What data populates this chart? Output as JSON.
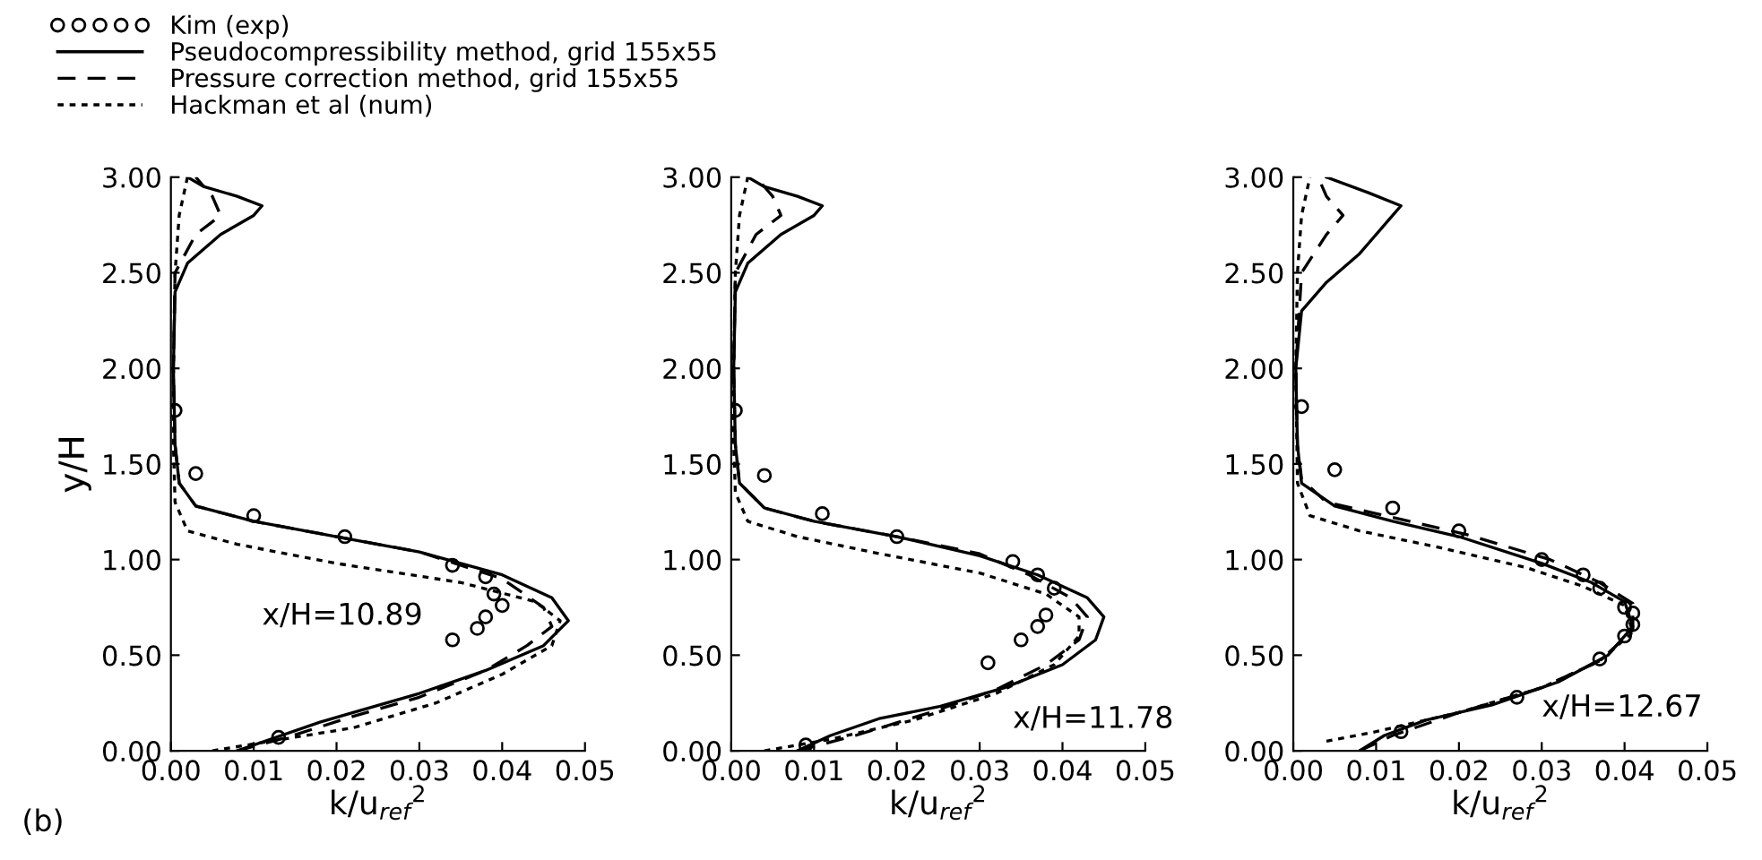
{
  "chart_data": [
    {
      "type": "line",
      "xlabel": "k/u$_{ref}$$^{2}$",
      "ylabel": "y/H",
      "xlim": [
        0,
        0.05
      ],
      "ylim": [
        0,
        3
      ],
      "legend": "top left",
      "grid": false,
      "xticks": [
        {
          "value": 0,
          "label": "0.00"
        },
        {
          "value": 0.01,
          "label": "0.01"
        },
        {
          "value": 0.02,
          "label": "0.02"
        },
        {
          "value": 0.03,
          "label": "0.03"
        },
        {
          "value": 0.04,
          "label": "0.04"
        },
        {
          "value": 0.05,
          "label": "0.05"
        }
      ],
      "yticks": [
        {
          "value": 0,
          "label": "0.00"
        },
        {
          "value": 0.5,
          "label": "0.50"
        },
        {
          "value": 1,
          "label": "1.00"
        },
        {
          "value": 1.5,
          "label": "1.50"
        },
        {
          "value": 2,
          "label": "2.00"
        },
        {
          "value": 2.5,
          "label": "2.50"
        },
        {
          "value": 3,
          "label": "3.00"
        }
      ],
      "annotations": [
        "x/H=10.89",
        "(b)"
      ],
      "series": [
        {
          "name": "Kim (exp)",
          "type": "scatter",
          "marker": "circle",
          "color": "#000000",
          "x": [
            0.0005,
            0.003,
            0.01,
            0.021,
            0.034,
            0.038,
            0.039,
            0.04,
            0.038,
            0.037,
            0.034,
            0.013
          ],
          "values": [
            1.78,
            1.45,
            1.23,
            1.12,
            0.97,
            0.91,
            0.82,
            0.76,
            0.7,
            0.64,
            0.58,
            0.07
          ]
        },
        {
          "name": "Pseudocompressibility method, grid 155x55",
          "line_style": "solid",
          "color": "#000000",
          "x": [
            0.008,
            0.012,
            0.018,
            0.022,
            0.03,
            0.038,
            0.045,
            0.048,
            0.046,
            0.04,
            0.03,
            0.02,
            0.01,
            0.003,
            0.001,
            0.0005,
            0.0003,
            0.0005,
            0.002,
            0.006,
            0.01,
            0.011,
            0.008,
            0.004,
            0.002
          ],
          "values": [
            0,
            0.06,
            0.15,
            0.2,
            0.3,
            0.42,
            0.55,
            0.68,
            0.8,
            0.92,
            1.04,
            1.12,
            1.2,
            1.28,
            1.4,
            1.6,
            2.0,
            2.4,
            2.55,
            2.7,
            2.8,
            2.85,
            2.9,
            2.95,
            3.0
          ]
        },
        {
          "name": "Pressure correction method, grid 155x55",
          "line_style": "dashed",
          "color": "#000000",
          "x": [
            0.008,
            0.014,
            0.022,
            0.03,
            0.038,
            0.043,
            0.046,
            0.045,
            0.04,
            0.03,
            0.02,
            0.01,
            0.003,
            0.001,
            0.0005,
            0.0003,
            0.0005,
            0.003,
            0.006,
            0.005,
            0.003
          ],
          "values": [
            0,
            0.07,
            0.18,
            0.28,
            0.42,
            0.55,
            0.65,
            0.75,
            0.9,
            1.04,
            1.12,
            1.2,
            1.28,
            1.4,
            1.6,
            2.0,
            2.5,
            2.7,
            2.8,
            2.9,
            3.0
          ]
        },
        {
          "name": "Hackman et al (num)",
          "line_style": "dotted",
          "color": "#000000",
          "x": [
            0.005,
            0.012,
            0.022,
            0.032,
            0.04,
            0.046,
            0.047,
            0.044,
            0.035,
            0.02,
            0.008,
            0.002,
            0.0005,
            0.0003,
            0.0003,
            0.0005,
            0.001,
            0.002
          ],
          "values": [
            0,
            0.05,
            0.12,
            0.25,
            0.4,
            0.55,
            0.68,
            0.78,
            0.88,
            0.98,
            1.08,
            1.15,
            1.3,
            1.6,
            2.0,
            2.5,
            2.8,
            3.0
          ]
        }
      ]
    },
    {
      "type": "line",
      "xlabel": "k/u$_{ref}$$^{2}$",
      "xlim": [
        0,
        0.05
      ],
      "ylim": [
        0,
        3
      ],
      "grid": false,
      "xticks": [
        {
          "value": 0,
          "label": "0.00"
        },
        {
          "value": 0.01,
          "label": "0.01"
        },
        {
          "value": 0.02,
          "label": "0.02"
        },
        {
          "value": 0.03,
          "label": "0.03"
        },
        {
          "value": 0.04,
          "label": "0.04"
        },
        {
          "value": 0.05,
          "label": "0.05"
        }
      ],
      "yticks": [
        {
          "value": 0,
          "label": "0.00"
        },
        {
          "value": 0.5,
          "label": "0.50"
        },
        {
          "value": 1,
          "label": "1.00"
        },
        {
          "value": 1.5,
          "label": "1.50"
        },
        {
          "value": 2,
          "label": "2.00"
        },
        {
          "value": 2.5,
          "label": "2.50"
        },
        {
          "value": 3,
          "label": "3.00"
        }
      ],
      "annotations": [
        "x/H=11.78"
      ],
      "series": [
        {
          "type": "scatter",
          "marker": "circle",
          "color": "#000000",
          "x": [
            0.0005,
            0.004,
            0.011,
            0.02,
            0.034,
            0.037,
            0.039,
            0.038,
            0.037,
            0.035,
            0.031,
            0.009
          ],
          "values": [
            1.78,
            1.44,
            1.24,
            1.12,
            0.99,
            0.92,
            0.85,
            0.71,
            0.65,
            0.58,
            0.46,
            0.03
          ]
        },
        {
          "type": "line",
          "line_style": "solid",
          "color": "#000000",
          "x": [
            0.008,
            0.012,
            0.018,
            0.025,
            0.033,
            0.04,
            0.044,
            0.045,
            0.043,
            0.037,
            0.03,
            0.02,
            0.01,
            0.004,
            0.001,
            0.0005,
            0.0003,
            0.0005,
            0.002,
            0.006,
            0.01,
            0.011,
            0.008,
            0.004,
            0.002
          ],
          "values": [
            0,
            0.08,
            0.17,
            0.23,
            0.33,
            0.45,
            0.58,
            0.7,
            0.8,
            0.92,
            1.02,
            1.12,
            1.2,
            1.27,
            1.4,
            1.6,
            2.0,
            2.4,
            2.55,
            2.7,
            2.8,
            2.85,
            2.9,
            2.95,
            3.0
          ]
        },
        {
          "type": "line",
          "line_style": "dashed",
          "color": "#000000",
          "x": [
            0.008,
            0.015,
            0.024,
            0.032,
            0.038,
            0.042,
            0.043,
            0.041,
            0.036,
            0.03,
            0.02,
            0.01,
            0.004,
            0.001,
            0.0005,
            0.0003,
            0.0005,
            0.003,
            0.006,
            0.005,
            0.003
          ],
          "values": [
            0,
            0.08,
            0.2,
            0.32,
            0.45,
            0.58,
            0.7,
            0.8,
            0.92,
            1.03,
            1.12,
            1.2,
            1.27,
            1.4,
            1.6,
            2.0,
            2.5,
            2.7,
            2.8,
            2.9,
            3.0
          ]
        },
        {
          "type": "line",
          "line_style": "dotted",
          "color": "#000000",
          "x": [
            0.004,
            0.012,
            0.022,
            0.032,
            0.039,
            0.042,
            0.042,
            0.038,
            0.03,
            0.018,
            0.008,
            0.002,
            0.0005,
            0.0003,
            0.0003,
            0.0005,
            0.001,
            0.002
          ],
          "values": [
            0,
            0.06,
            0.16,
            0.3,
            0.45,
            0.6,
            0.7,
            0.82,
            0.93,
            1.03,
            1.12,
            1.2,
            1.35,
            1.6,
            2.0,
            2.5,
            2.8,
            3.0
          ]
        }
      ]
    },
    {
      "type": "line",
      "xlabel": "k/u$_{ref}$$^{2}$",
      "xlim": [
        0,
        0.05
      ],
      "ylim": [
        0,
        3
      ],
      "grid": false,
      "xticks": [
        {
          "value": 0,
          "label": "0.00"
        },
        {
          "value": 0.01,
          "label": "0.01"
        },
        {
          "value": 0.02,
          "label": "0.02"
        },
        {
          "value": 0.03,
          "label": "0.03"
        },
        {
          "value": 0.04,
          "label": "0.04"
        },
        {
          "value": 0.05,
          "label": "0.05"
        }
      ],
      "yticks": [
        {
          "value": 0,
          "label": "0.00"
        },
        {
          "value": 0.5,
          "label": "0.50"
        },
        {
          "value": 1,
          "label": "1.00"
        },
        {
          "value": 1.5,
          "label": "1.50"
        },
        {
          "value": 2,
          "label": "2.00"
        },
        {
          "value": 2.5,
          "label": "2.50"
        },
        {
          "value": 3,
          "label": "3.00"
        }
      ],
      "annotations": [
        "x/H=12.67"
      ],
      "series": [
        {
          "type": "scatter",
          "marker": "circle",
          "color": "#000000",
          "x": [
            0.001,
            0.005,
            0.012,
            0.02,
            0.03,
            0.035,
            0.037,
            0.04,
            0.041,
            0.041,
            0.04,
            0.037,
            0.027,
            0.013
          ],
          "values": [
            1.8,
            1.47,
            1.27,
            1.15,
            1.0,
            0.92,
            0.85,
            0.75,
            0.72,
            0.66,
            0.6,
            0.48,
            0.28,
            0.1
          ]
        },
        {
          "type": "line",
          "line_style": "solid",
          "color": "#000000",
          "x": [
            0.008,
            0.011,
            0.016,
            0.024,
            0.032,
            0.038,
            0.041,
            0.04,
            0.036,
            0.03,
            0.02,
            0.012,
            0.005,
            0.001,
            0.0005,
            0.0003,
            0.001,
            0.004,
            0.008,
            0.012,
            0.013,
            0.009,
            0.004
          ],
          "values": [
            0,
            0.08,
            0.16,
            0.24,
            0.36,
            0.5,
            0.65,
            0.78,
            0.88,
            0.98,
            1.12,
            1.2,
            1.28,
            1.4,
            1.6,
            2.0,
            2.3,
            2.45,
            2.6,
            2.8,
            2.85,
            2.92,
            3.0
          ]
        },
        {
          "type": "line",
          "line_style": "dashed",
          "color": "#000000",
          "x": [
            0.008,
            0.012,
            0.02,
            0.03,
            0.037,
            0.041,
            0.041,
            0.037,
            0.031,
            0.021,
            0.012,
            0.004,
            0.001,
            0.0005,
            0.0003,
            0.001,
            0.004,
            0.006,
            0.004,
            0.003
          ],
          "values": [
            0,
            0.08,
            0.2,
            0.33,
            0.47,
            0.63,
            0.77,
            0.88,
            1.0,
            1.13,
            1.22,
            1.3,
            1.42,
            1.6,
            2.0,
            2.5,
            2.7,
            2.8,
            2.9,
            3.0
          ]
        },
        {
          "type": "line",
          "line_style": "dotted",
          "color": "#000000",
          "x": [
            0.004,
            0.01,
            0.02,
            0.03,
            0.037,
            0.041,
            0.04,
            0.035,
            0.028,
            0.018,
            0.008,
            0.002,
            0.0005,
            0.0003,
            0.0005,
            0.001,
            0.002
          ],
          "values": [
            0.05,
            0.1,
            0.2,
            0.33,
            0.47,
            0.62,
            0.76,
            0.86,
            0.96,
            1.06,
            1.15,
            1.23,
            1.4,
            2.0,
            2.5,
            2.8,
            3.0
          ]
        }
      ]
    }
  ]
}
